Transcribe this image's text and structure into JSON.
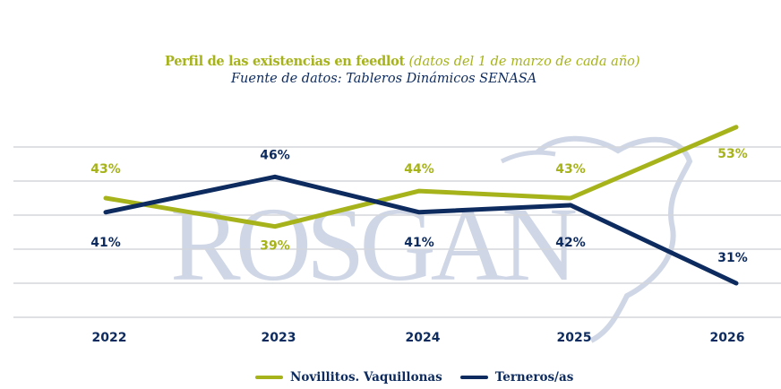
{
  "chart_data": {
    "type": "line",
    "title": "Perfil de las existencias en feedlot",
    "title_note": "(datos del 1 de marzo de cada año)",
    "subtitle": "Fuente de datos: Tableros Dinámicos SENASA",
    "categories": [
      "2022",
      "2023",
      "2024",
      "2025",
      "2026"
    ],
    "series": [
      {
        "name": "Novillitos. Vaquillonas",
        "color": "#a6b31b",
        "values": [
          43,
          39,
          44,
          43,
          53
        ],
        "labels": [
          "43%",
          "39%",
          "44%",
          "43%",
          "53%"
        ]
      },
      {
        "name": "Terneros/as",
        "color": "#0d2b5e",
        "values": [
          41,
          46,
          41,
          42,
          31
        ],
        "labels": [
          "41%",
          "46%",
          "41%",
          "42%",
          "31%"
        ]
      }
    ],
    "xlabel": "",
    "ylabel": "",
    "ylim": [
      26.2,
      50.2
    ],
    "gridlines": 6,
    "grid": true,
    "legend": "bottom-center",
    "watermark": "ROSGAN"
  }
}
